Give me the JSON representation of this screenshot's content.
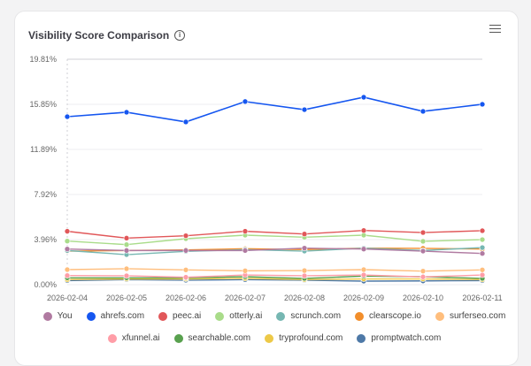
{
  "header": {
    "title": "Visibility Score Comparison",
    "info_icon": "info-icon",
    "menu_icon": "hamburger-menu-icon"
  },
  "chart_data": {
    "type": "line",
    "title": "Visibility Score Comparison",
    "x": [
      "2026-02-04",
      "2026-02-05",
      "2026-02-06",
      "2026-02-07",
      "2026-02-08",
      "2026-02-09",
      "2026-02-10",
      "2026-02-11"
    ],
    "yticks": [
      "0.00%",
      "3.96%",
      "7.92%",
      "11.89%",
      "15.85%",
      "19.81%"
    ],
    "ylim": [
      0,
      19.81
    ],
    "grid": true,
    "legend": "bottom",
    "series": [
      {
        "name": "You",
        "color": "#b07aa1",
        "values": [
          3.13,
          3.0,
          3.0,
          3.0,
          3.21,
          3.13,
          2.95,
          2.74
        ]
      },
      {
        "name": "ahrefs.com",
        "color": "#1556f0",
        "values": [
          14.76,
          15.15,
          14.3,
          16.09,
          15.38,
          16.47,
          15.23,
          15.85
        ]
      },
      {
        "name": "peec.ai",
        "color": "#e15759",
        "values": [
          4.69,
          4.09,
          4.3,
          4.69,
          4.45,
          4.76,
          4.58,
          4.74
        ]
      },
      {
        "name": "otterly.ai",
        "color": "#a9dc8a",
        "values": [
          3.83,
          3.52,
          4.04,
          4.35,
          4.17,
          4.35,
          3.81,
          3.96
        ]
      },
      {
        "name": "scrunch.com",
        "color": "#76b7b2",
        "values": [
          3.0,
          2.64,
          2.93,
          3.08,
          2.95,
          3.21,
          3.0,
          3.26
        ]
      },
      {
        "name": "clearscope.io",
        "color": "#f28e2b",
        "values": [
          2.95,
          3.0,
          3.05,
          3.16,
          3.08,
          3.21,
          3.19,
          3.13
        ]
      },
      {
        "name": "surferseo.com",
        "color": "#ffbe7d",
        "values": [
          1.32,
          1.4,
          1.3,
          1.22,
          1.24,
          1.32,
          1.19,
          1.3
        ]
      },
      {
        "name": "xfunnel.ai",
        "color": "#ff9da7",
        "values": [
          0.8,
          0.78,
          0.65,
          0.85,
          0.78,
          0.85,
          0.68,
          0.85
        ]
      },
      {
        "name": "searchable.com",
        "color": "#59a14f",
        "values": [
          0.6,
          0.6,
          0.6,
          0.7,
          0.55,
          0.75,
          0.7,
          0.55
        ]
      },
      {
        "name": "tryprofound.com",
        "color": "#edc948",
        "values": [
          0.45,
          0.5,
          0.5,
          0.55,
          0.45,
          0.5,
          0.5,
          0.45
        ]
      },
      {
        "name": "promptwatch.com",
        "color": "#4e79a7",
        "values": [
          0.36,
          0.44,
          0.39,
          0.44,
          0.39,
          0.31,
          0.33,
          0.36
        ]
      }
    ]
  }
}
